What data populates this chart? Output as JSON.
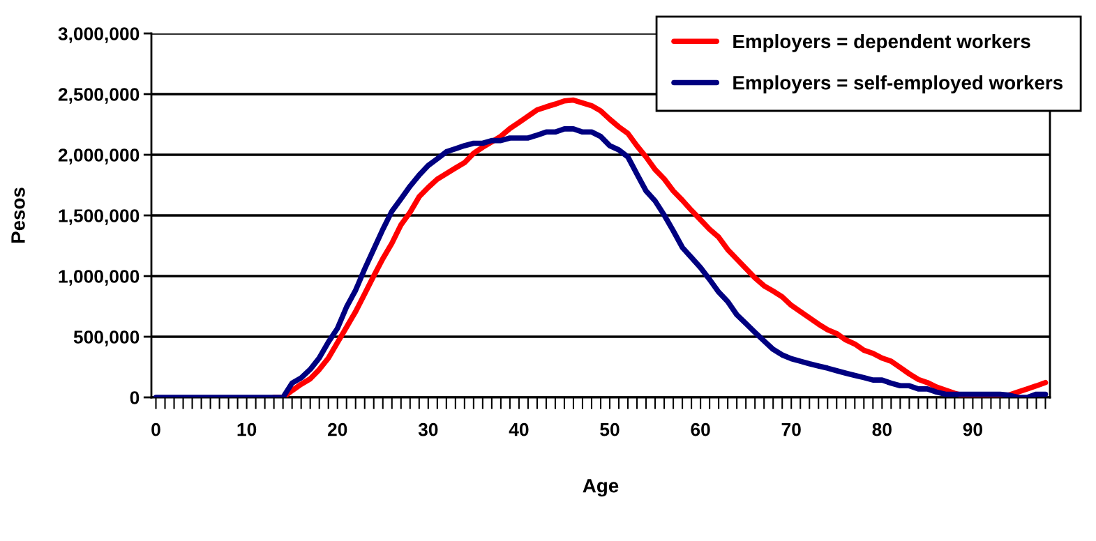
{
  "chart_data": {
    "type": "line",
    "xlabel": "Age",
    "ylabel": "Pesos",
    "x": [
      0,
      1,
      2,
      3,
      4,
      5,
      6,
      7,
      8,
      9,
      10,
      11,
      12,
      13,
      14,
      15,
      16,
      17,
      18,
      19,
      20,
      21,
      22,
      23,
      24,
      25,
      26,
      27,
      28,
      29,
      30,
      31,
      32,
      33,
      34,
      35,
      36,
      37,
      38,
      39,
      40,
      41,
      42,
      43,
      44,
      45,
      46,
      47,
      48,
      49,
      50,
      51,
      52,
      53,
      54,
      55,
      56,
      57,
      58,
      59,
      60,
      61,
      62,
      63,
      64,
      65,
      66,
      67,
      68,
      69,
      70,
      71,
      72,
      73,
      74,
      75,
      76,
      77,
      78,
      79,
      80,
      81,
      82,
      83,
      84,
      85,
      86,
      87,
      88,
      89,
      90,
      91,
      92,
      93,
      94,
      95,
      96,
      97,
      98
    ],
    "series": [
      {
        "name": "Employers = dependent workers",
        "color": "#ff0000",
        "values": [
          null,
          null,
          null,
          null,
          null,
          null,
          null,
          null,
          null,
          null,
          null,
          null,
          null,
          0,
          0,
          56000,
          108000,
          153000,
          230000,
          324000,
          452000,
          579000,
          707000,
          854000,
          1001000,
          1144000,
          1271000,
          1423000,
          1526000,
          1654000,
          1731000,
          1799000,
          1845000,
          1891000,
          1935000,
          2012000,
          2062000,
          2106000,
          2153000,
          2216000,
          2267000,
          2318000,
          2370000,
          2395000,
          2418000,
          2444000,
          2451000,
          2428000,
          2405000,
          2362000,
          2293000,
          2230000,
          2176000,
          2073000,
          1982000,
          1878000,
          1801000,
          1702000,
          1625000,
          1542000,
          1464000,
          1386000,
          1321000,
          1218000,
          1140000,
          1062000,
          985000,
          920000,
          876000,
          829000,
          759000,
          707000,
          656000,
          604000,
          557000,
          526000,
          474000,
          440000,
          389000,
          363000,
          324000,
          298000,
          246000,
          194000,
          148000,
          122000,
          85000,
          60000,
          34000,
          13000,
          0,
          0,
          0,
          0,
          20000,
          45000,
          70000,
          95000,
          122000
        ]
      },
      {
        "name": "Employers = self-employed workers",
        "color": "#000080",
        "values": [
          0,
          0,
          0,
          0,
          0,
          0,
          0,
          0,
          0,
          0,
          0,
          0,
          0,
          0,
          0,
          118000,
          161000,
          231000,
          326000,
          456000,
          569000,
          745000,
          883000,
          1059000,
          1222000,
          1385000,
          1535000,
          1636000,
          1741000,
          1832000,
          1912000,
          1967000,
          2025000,
          2050000,
          2075000,
          2095000,
          2095000,
          2117000,
          2117000,
          2138000,
          2138000,
          2138000,
          2162000,
          2188000,
          2188000,
          2213000,
          2213000,
          2188000,
          2188000,
          2151000,
          2075000,
          2040000,
          1982000,
          1840000,
          1702000,
          1619000,
          1503000,
          1373000,
          1236000,
          1153000,
          1070000,
          972000,
          868000,
          790000,
          681000,
          609000,
          536000,
          466000,
          396000,
          350000,
          319000,
          298000,
          277000,
          259000,
          241000,
          220000,
          200000,
          181000,
          163000,
          143000,
          143000,
          117000,
          96000,
          96000,
          70000,
          70000,
          44000,
          26000,
          26000,
          26000,
          26000,
          26000,
          26000,
          26000,
          18000,
          0,
          0,
          26000,
          26000
        ]
      }
    ],
    "xlim": [
      -0.5,
      98.5
    ],
    "xticks": [
      0,
      10,
      20,
      30,
      40,
      50,
      60,
      70,
      80,
      90
    ],
    "ylim": [
      0,
      3000000
    ],
    "yticks": [
      {
        "value": 0,
        "label": "0"
      },
      {
        "value": 500000,
        "label": "500,000"
      },
      {
        "value": 1000000,
        "label": "1,000,000"
      },
      {
        "value": 1500000,
        "label": "1,500,000"
      },
      {
        "value": 2000000,
        "label": "2,000,000"
      },
      {
        "value": 2500000,
        "label": "2,500,000"
      },
      {
        "value": 3000000,
        "label": "3,000,000"
      }
    ],
    "grid": "y",
    "legend": "top right",
    "marker": "none",
    "line_style": "solid"
  }
}
